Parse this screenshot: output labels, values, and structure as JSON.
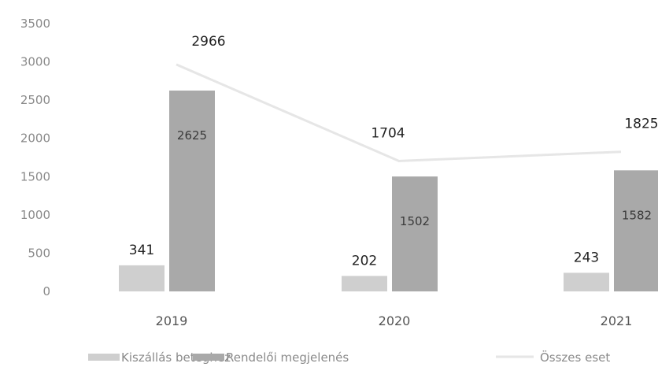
{
  "chart_data": {
    "type": "bar",
    "categories": [
      "2019",
      "2020",
      "2021"
    ],
    "series": [
      {
        "name": "Kiszállás beteghez",
        "kind": "bar",
        "values": [
          341,
          202,
          243
        ],
        "color": "#cfcfcf"
      },
      {
        "name": "Rendelői megjelenés",
        "kind": "bar",
        "values": [
          2625,
          1502,
          1582
        ],
        "color": "#a9a9a9"
      },
      {
        "name": "Összes eset",
        "kind": "line",
        "values": [
          2966,
          1704,
          1825
        ],
        "color": "#e6e6e6"
      }
    ],
    "yticks": [
      "0",
      "500",
      "1000",
      "1500",
      "2000",
      "2500",
      "3000",
      "3500"
    ],
    "ylim": [
      0,
      3500
    ],
    "legend_position": "bottom",
    "grid": false
  }
}
